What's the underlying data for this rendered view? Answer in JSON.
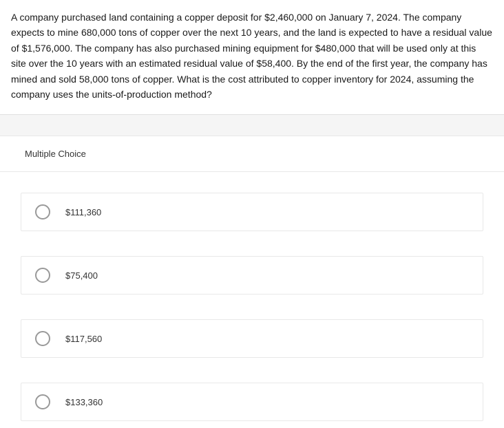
{
  "question": {
    "text": "A company purchased land containing a copper deposit for $2,460,000 on January 7, 2024. The company expects to mine 680,000 tons of copper over the next 10 years, and the land is expected to have a residual value of $1,576,000. The company has also purchased mining equipment for $480,000 that will be used only at this site over the 10 years with an estimated residual value of $58,400. By the end of the first year, the company has mined and sold 58,000 tons of copper. What is the cost attributed to copper inventory for 2024, assuming the company uses the units-of-production method?"
  },
  "section_label": "Multiple Choice",
  "options": [
    {
      "label": "$111,360"
    },
    {
      "label": "$75,400"
    },
    {
      "label": "$117,560"
    },
    {
      "label": "$133,360"
    }
  ],
  "colors": {
    "background": "#f5f5f5",
    "card_bg": "#ffffff",
    "border": "#e8e8e8",
    "text": "#1a1a1a",
    "radio_border": "#999"
  }
}
